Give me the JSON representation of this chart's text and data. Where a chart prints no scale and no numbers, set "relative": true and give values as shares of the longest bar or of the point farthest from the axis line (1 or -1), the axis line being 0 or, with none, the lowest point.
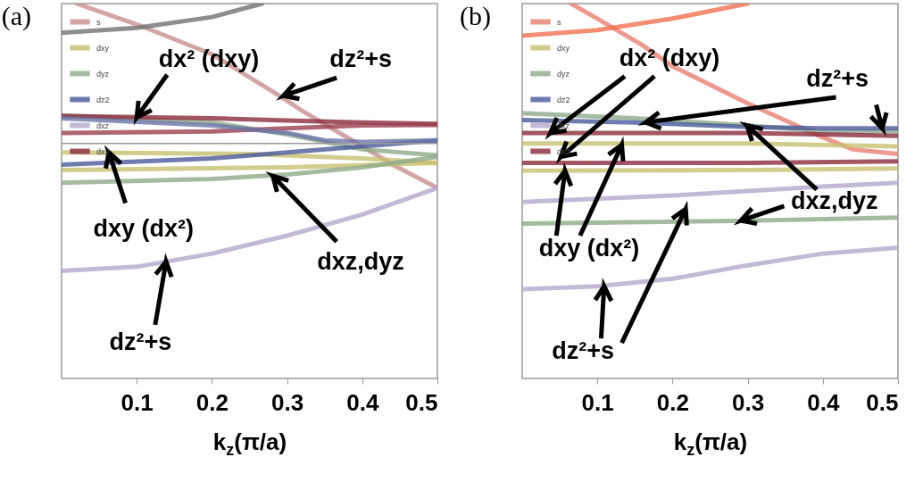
{
  "chart_data": [
    {
      "type": "line",
      "title": "(a)",
      "xlabel": "k$_{z}$(π/a)",
      "relative": true,
      "xlim": [
        0,
        0.5
      ],
      "xticks": [
        0.1,
        0.2,
        0.3,
        0.4,
        0.5
      ],
      "tick_labels": "x",
      "legend": "top left",
      "series": [
        {
          "name": "s",
          "color": "#c89090",
          "x": [
            0.02,
            0.11,
            0.2,
            0.29,
            0.32,
            0.4,
            0.44,
            0.5
          ],
          "values": [
            1.0,
            0.937,
            0.865,
            0.754,
            0.714,
            0.619,
            0.571,
            0.508
          ]
        },
        {
          "name": "dxy",
          "color": "#c8c070",
          "type": "line",
          "x": [
            0,
            0.25,
            0.4,
            0.5
          ],
          "values": [
            0.603,
            0.599,
            0.587,
            0.575
          ]
        },
        {
          "name": "dyz",
          "color": "#8faa8a",
          "type": "line",
          "x": [
            0,
            0.2,
            0.3,
            0.4,
            0.5
          ],
          "values": [
            0.702,
            0.683,
            0.651,
            0.611,
            0.595
          ]
        },
        {
          "name": "dz2",
          "color": "#4a5a9a",
          "type": "line",
          "x": [
            0,
            0.2,
            0.3,
            0.4,
            0.5
          ],
          "values": [
            0.57,
            0.587,
            0.603,
            0.619,
            0.635
          ]
        },
        {
          "name": "dxz",
          "color": "#b4a8cc",
          "type": "line",
          "x": [
            0,
            0.1,
            0.2,
            0.3,
            0.4,
            0.5
          ],
          "values": [
            0.287,
            0.298,
            0.333,
            0.381,
            0.437,
            0.508
          ]
        },
        {
          "name": "dx2",
          "color": "#8b2a3c",
          "type": "line",
          "x": [
            0,
            0.2,
            0.3,
            0.4,
            0.5
          ],
          "values": [
            0.7,
            0.694,
            0.688,
            0.683,
            0.679
          ]
        },
        {
          "color": "#9a4050",
          "type": "line",
          "x": [
            0,
            0.2,
            0.3,
            0.4,
            0.5
          ],
          "values": [
            0.655,
            0.659,
            0.667,
            0.675,
            0.676
          ]
        },
        {
          "color": "#6a74a8",
          "type": "line",
          "x": [
            0,
            0.2,
            0.3,
            0.35,
            0.4,
            0.5
          ],
          "values": [
            0.694,
            0.675,
            0.655,
            0.635,
            0.631,
            0.635
          ]
        },
        {
          "color": "#c8c070",
          "type": "line",
          "x": [
            0,
            0.3,
            0.5
          ],
          "values": [
            0.556,
            0.563,
            0.575
          ]
        },
        {
          "color": "#8faa8a",
          "type": "line",
          "x": [
            0,
            0.2,
            0.3,
            0.4,
            0.5
          ],
          "values": [
            0.522,
            0.532,
            0.544,
            0.563,
            0.591
          ]
        },
        {
          "color": "#707070",
          "type": "line",
          "x": [
            0,
            0.1,
            0.2,
            0.267
          ],
          "values": [
            0.922,
            0.935,
            0.964,
            1.0
          ]
        }
      ],
      "ref_lines": [
        {
          "axis": "y",
          "value": 0.627,
          "color": "#999999"
        }
      ],
      "annotations": [
        {
          "text": "dx² (dxy)",
          "x": 0.1,
          "y": 0.697
        },
        {
          "text": "dz²+s",
          "x": 0.295,
          "y": 0.754
        },
        {
          "text": "dxy (dx²)",
          "x": 0.063,
          "y": 0.603
        },
        "dxz,dyz",
        {
          "text": "dz²+s",
          "x": 0.139,
          "y": 0.312
        }
      ]
    },
    {
      "type": "line",
      "title": "(b)",
      "xlabel": "k$_{z}$(π/a)",
      "relative": true,
      "xlim": [
        0,
        0.5
      ],
      "xticks": [
        0.1,
        0.2,
        0.3,
        0.4,
        0.5
      ],
      "tick_labels": "x",
      "legend": "top left",
      "series": [
        {
          "name": "s",
          "color": "#e88070",
          "x": [
            0.065,
            0.1,
            0.16,
            0.2,
            0.3,
            0.4,
            0.44,
            0.5
          ],
          "values": [
            1.0,
            0.96,
            0.889,
            0.833,
            0.734,
            0.643,
            0.611,
            0.599
          ]
        },
        {
          "name": "dxy",
          "color": "#c8c070",
          "type": "line",
          "x": [
            0,
            0.3,
            0.5
          ],
          "values": [
            0.627,
            0.627,
            0.619
          ]
        },
        {
          "name": "dyz",
          "color": "#8faa8a",
          "type": "line",
          "x": [
            0,
            0.15,
            0.3,
            0.4,
            0.5
          ],
          "values": [
            0.708,
            0.694,
            0.675,
            0.659,
            0.659
          ]
        },
        {
          "name": "dz2",
          "color": "#4a5a9a",
          "type": "line",
          "x": [
            0,
            0.15,
            0.3,
            0.4,
            0.5
          ],
          "values": [
            0.689,
            0.683,
            0.671,
            0.667,
            0.667
          ]
        },
        {
          "name": "dxz",
          "color": "#b4a8cc",
          "type": "line",
          "x": [
            0,
            0.2,
            0.3,
            0.4,
            0.5
          ],
          "values": [
            0.471,
            0.488,
            0.5,
            0.512,
            0.522
          ]
        },
        {
          "name": "dx2",
          "color": "#8b2a3c",
          "type": "line",
          "x": [
            0,
            0.3,
            0.5
          ],
          "values": [
            0.655,
            0.655,
            0.647
          ]
        },
        {
          "color": "#8b2a3c",
          "type": "line",
          "x": [
            0,
            0.3,
            0.5
          ],
          "values": [
            0.575,
            0.575,
            0.579
          ]
        },
        {
          "color": "#c8c070",
          "type": "line",
          "x": [
            0,
            0.3,
            0.5
          ],
          "values": [
            0.554,
            0.556,
            0.56
          ]
        },
        {
          "color": "#8faa8a",
          "type": "line",
          "x": [
            0,
            0.3,
            0.5
          ],
          "values": [
            0.413,
            0.421,
            0.429
          ]
        },
        {
          "color": "#b4a8cc",
          "type": "line",
          "x": [
            0,
            0.1,
            0.2,
            0.3,
            0.4,
            0.5
          ],
          "values": [
            0.238,
            0.246,
            0.266,
            0.302,
            0.333,
            0.349
          ]
        },
        {
          "color": "#f07050",
          "type": "line",
          "x": [
            0,
            0.1,
            0.2,
            0.3
          ],
          "values": [
            0.914,
            0.929,
            0.96,
            1.0
          ]
        }
      ],
      "annotations": [
        "dx² (dxy)",
        {
          "text": "dz²+s",
          "x": 0.479,
          "y": 0.667
        },
        {
          "text": "dxy (dx²)",
          "x": 0.057,
          "y": 0.554
        },
        {
          "text": "dxz,dyz",
          "x": 0.291,
          "y": 0.421
        },
        {
          "text": "dz²+s",
          "x": 0.109,
          "y": 0.246
        }
      ]
    }
  ]
}
